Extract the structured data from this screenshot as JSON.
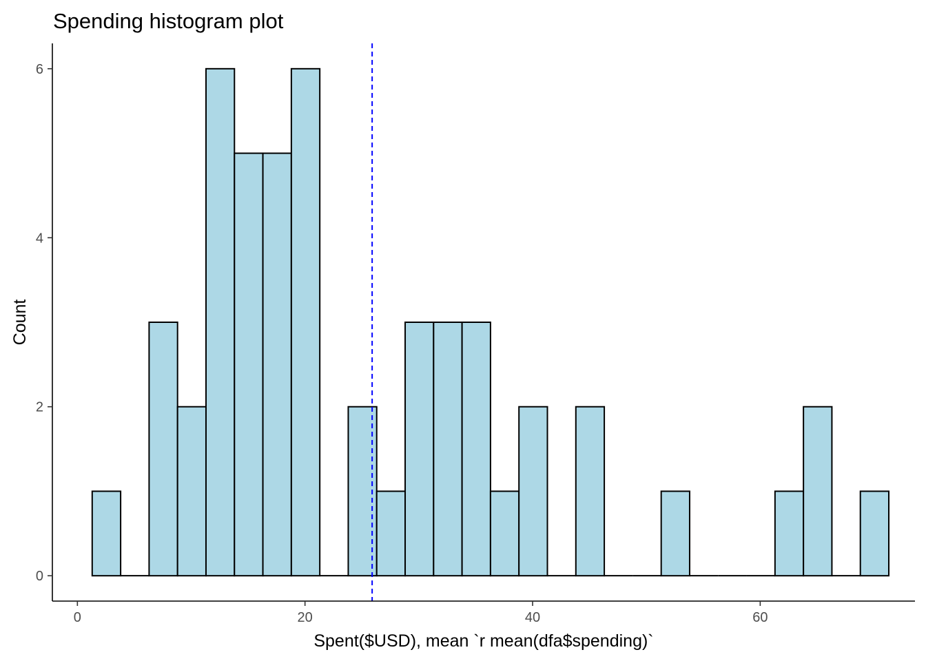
{
  "chart_data": {
    "type": "bar",
    "subtype": "histogram",
    "title": "Spending histogram plot",
    "xlabel": "Spent($USD), mean `r mean(dfa$spending)`",
    "ylabel": "Count",
    "xlim": [
      -2.2,
      73.6
    ],
    "ylim": [
      -0.3,
      6.3
    ],
    "x_ticks": [
      0,
      20,
      40,
      60
    ],
    "x_tick_labels": [
      "0",
      "20",
      "40",
      "60"
    ],
    "y_ticks": [
      0,
      2,
      4,
      6
    ],
    "y_tick_labels": [
      "0",
      "2",
      "4",
      "6"
    ],
    "bin_width": 2.5,
    "bins": [
      {
        "x0": 1.3,
        "x1": 3.8,
        "count": 1
      },
      {
        "x0": 3.8,
        "x1": 6.3,
        "count": 0
      },
      {
        "x0": 6.3,
        "x1": 8.8,
        "count": 3
      },
      {
        "x0": 8.8,
        "x1": 11.3,
        "count": 2
      },
      {
        "x0": 11.3,
        "x1": 13.8,
        "count": 6
      },
      {
        "x0": 13.8,
        "x1": 16.3,
        "count": 5
      },
      {
        "x0": 16.3,
        "x1": 18.8,
        "count": 5
      },
      {
        "x0": 18.8,
        "x1": 21.3,
        "count": 6
      },
      {
        "x0": 21.3,
        "x1": 23.8,
        "count": 0
      },
      {
        "x0": 23.8,
        "x1": 26.3,
        "count": 2
      },
      {
        "x0": 26.3,
        "x1": 28.8,
        "count": 1
      },
      {
        "x0": 28.8,
        "x1": 31.3,
        "count": 3
      },
      {
        "x0": 31.3,
        "x1": 33.8,
        "count": 3
      },
      {
        "x0": 33.8,
        "x1": 36.3,
        "count": 3
      },
      {
        "x0": 36.3,
        "x1": 38.8,
        "count": 1
      },
      {
        "x0": 38.8,
        "x1": 41.3,
        "count": 2
      },
      {
        "x0": 41.3,
        "x1": 43.8,
        "count": 0
      },
      {
        "x0": 43.8,
        "x1": 46.3,
        "count": 2
      },
      {
        "x0": 46.3,
        "x1": 48.8,
        "count": 0
      },
      {
        "x0": 48.8,
        "x1": 51.3,
        "count": 0
      },
      {
        "x0": 51.3,
        "x1": 53.8,
        "count": 1
      },
      {
        "x0": 53.8,
        "x1": 56.3,
        "count": 0
      },
      {
        "x0": 56.3,
        "x1": 58.8,
        "count": 0
      },
      {
        "x0": 58.8,
        "x1": 61.3,
        "count": 0
      },
      {
        "x0": 61.3,
        "x1": 63.8,
        "count": 1
      },
      {
        "x0": 63.8,
        "x1": 66.3,
        "count": 2
      },
      {
        "x0": 66.3,
        "x1": 68.8,
        "count": 0
      },
      {
        "x0": 68.8,
        "x1": 71.3,
        "count": 1
      }
    ],
    "mean_line": {
      "x": 25.9,
      "color": "#0000ff",
      "style": "dashed"
    },
    "bar_fill": "#add8e6",
    "bar_outline": "#000000",
    "grid": false,
    "legend": "none"
  }
}
